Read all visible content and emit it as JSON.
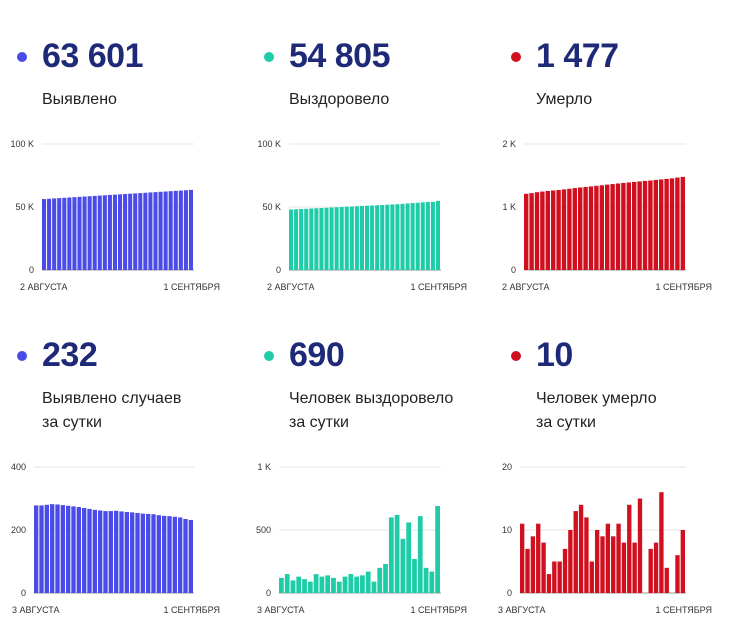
{
  "colors": {
    "detected": "#4b4be8",
    "recovered": "#1fcca8",
    "died": "#d0101e",
    "number": "#1e2a78",
    "grid": "#e6e6e6"
  },
  "cards": [
    {
      "value": "63 601",
      "label_line1": "Выявлено",
      "label_line2": ""
    },
    {
      "value": "54 805",
      "label_line1": "Выздоровело",
      "label_line2": ""
    },
    {
      "value": "1 477",
      "label_line1": "Умерло",
      "label_line2": ""
    },
    {
      "value": "232",
      "label_line1": "Выявлено случаев",
      "label_line2": "за сутки"
    },
    {
      "value": "690",
      "label_line1": "Человек выздоровело",
      "label_line2": "за сутки"
    },
    {
      "value": "10",
      "label_line1": "Человек умерло",
      "label_line2": "за сутки"
    }
  ],
  "chart_data": [
    {
      "type": "bar",
      "color_key": "detected",
      "ylim": [
        0,
        100000
      ],
      "ytick_values": [
        0,
        50000,
        100000
      ],
      "ytick_labels": [
        "0",
        "50 K",
        "100 K"
      ],
      "xtick_labels": [
        "2 АВГУСТА",
        "1 СЕНТЯБРЯ"
      ],
      "values": [
        56300,
        56550,
        56800,
        57050,
        57300,
        57550,
        57800,
        58050,
        58300,
        58550,
        58800,
        59050,
        59300,
        59550,
        59800,
        60050,
        60300,
        60550,
        60800,
        61050,
        61300,
        61550,
        61800,
        62050,
        62300,
        62550,
        62800,
        63050,
        63300,
        63601
      ]
    },
    {
      "type": "bar",
      "color_key": "recovered",
      "ylim": [
        0,
        100000
      ],
      "ytick_values": [
        0,
        50000,
        100000
      ],
      "ytick_labels": [
        "0",
        "50 K",
        "100 K"
      ],
      "xtick_labels": [
        "2 АВГУСТА",
        "1 СЕНТЯБРЯ"
      ],
      "values": [
        48000,
        48200,
        48400,
        48600,
        48800,
        49000,
        49200,
        49400,
        49600,
        49800,
        50000,
        50200,
        50400,
        50600,
        50800,
        51000,
        51200,
        51400,
        51600,
        51800,
        52000,
        52250,
        52500,
        52800,
        53100,
        53400,
        53700,
        54000,
        54115,
        54805
      ]
    },
    {
      "type": "bar",
      "color_key": "died",
      "ylim": [
        0,
        2000
      ],
      "ytick_values": [
        0,
        1000,
        2000
      ],
      "ytick_labels": [
        "0",
        "1 K",
        "2 K"
      ],
      "xtick_labels": [
        "2 АВГУСТА",
        "1 СЕНТЯБРЯ"
      ],
      "values": [
        1210,
        1220,
        1235,
        1245,
        1255,
        1262,
        1270,
        1280,
        1290,
        1300,
        1310,
        1318,
        1327,
        1336,
        1345,
        1355,
        1364,
        1373,
        1382,
        1390,
        1398,
        1406,
        1414,
        1420,
        1430,
        1438,
        1446,
        1455,
        1467,
        1477
      ]
    },
    {
      "type": "bar",
      "color_key": "detected",
      "ylim": [
        0,
        400
      ],
      "ytick_values": [
        0,
        200,
        400
      ],
      "ytick_labels": [
        "0",
        "200",
        "400"
      ],
      "xtick_labels": [
        "3 АВГУСТА",
        "1 СЕНТЯБРЯ"
      ],
      "values": [
        278,
        278,
        280,
        282,
        281,
        279,
        277,
        275,
        273,
        270,
        267,
        264,
        262,
        260,
        260,
        261,
        259,
        257,
        256,
        254,
        252,
        251,
        250,
        247,
        245,
        244,
        242,
        240,
        235,
        232
      ]
    },
    {
      "type": "bar",
      "color_key": "recovered",
      "ylim": [
        0,
        1000
      ],
      "ytick_values": [
        0,
        500,
        1000
      ],
      "ytick_labels": [
        "0",
        "500",
        "1 K"
      ],
      "xtick_labels": [
        "3 АВГУСТА",
        "1 СЕНТЯБРЯ"
      ],
      "values": [
        120,
        150,
        100,
        130,
        110,
        90,
        150,
        130,
        140,
        120,
        90,
        130,
        150,
        130,
        140,
        170,
        90,
        200,
        230,
        600,
        620,
        430,
        560,
        270,
        610,
        200,
        170,
        690
      ]
    },
    {
      "type": "bar",
      "color_key": "died",
      "ylim": [
        0,
        20
      ],
      "ytick_values": [
        0,
        10,
        20
      ],
      "ytick_labels": [
        "0",
        "10",
        "20"
      ],
      "xtick_labels": [
        "3 АВГУСТА",
        "1 СЕНТЯБРЯ"
      ],
      "values": [
        11,
        7,
        9,
        11,
        8,
        3,
        5,
        5,
        7,
        10,
        13,
        14,
        12,
        5,
        10,
        9,
        11,
        9,
        11,
        8,
        14,
        8,
        15,
        0,
        7,
        8,
        16,
        4,
        0,
        6,
        10
      ]
    }
  ]
}
